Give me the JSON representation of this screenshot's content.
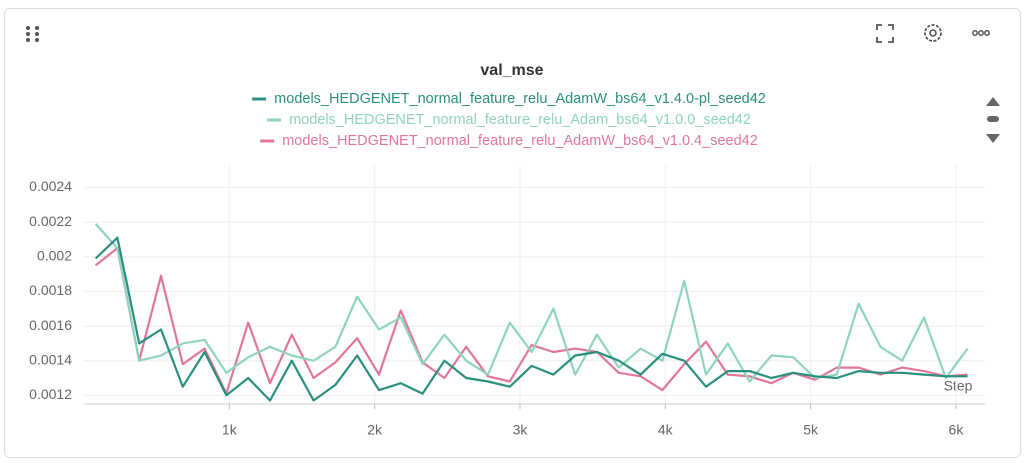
{
  "chart_data": {
    "type": "line",
    "title": "val_mse",
    "x_label": "Step",
    "x": [
      80,
      230,
      380,
      530,
      680,
      830,
      980,
      1130,
      1280,
      1430,
      1580,
      1730,
      1880,
      2030,
      2180,
      2330,
      2480,
      2630,
      2780,
      2930,
      3080,
      3230,
      3380,
      3530,
      3680,
      3830,
      3980,
      4130,
      4280,
      4430,
      4580,
      4730,
      4880,
      5030,
      5180,
      5330,
      5480,
      5630,
      5780,
      5930,
      6080
    ],
    "series": [
      {
        "name": "models_HEDGENET_normal_feature_relu_AdamW_bs64_v1.4.0-pl_seed42",
        "color": "#2a8f7e",
        "values": [
          0.00199,
          0.00211,
          0.0015,
          0.00158,
          0.00125,
          0.00145,
          0.0012,
          0.0013,
          0.00117,
          0.0014,
          0.00117,
          0.00126,
          0.00143,
          0.00123,
          0.00127,
          0.00121,
          0.0014,
          0.0013,
          0.00128,
          0.00125,
          0.00137,
          0.00132,
          0.00143,
          0.00145,
          0.0014,
          0.00132,
          0.00144,
          0.0014,
          0.00125,
          0.00134,
          0.00134,
          0.0013,
          0.00133,
          0.00131,
          0.0013,
          0.00134,
          0.00133,
          0.00133,
          0.00132,
          0.00131,
          0.00131
        ]
      },
      {
        "name": "models_HEDGENET_normal_feature_relu_Adam_bs64_v1.0.0_seed42",
        "color": "#8fd3c1",
        "values": [
          0.00219,
          0.00205,
          0.0014,
          0.00143,
          0.0015,
          0.00152,
          0.00133,
          0.00142,
          0.00148,
          0.00143,
          0.0014,
          0.00148,
          0.00177,
          0.00158,
          0.00165,
          0.00138,
          0.00155,
          0.0014,
          0.00132,
          0.00162,
          0.00145,
          0.0017,
          0.00132,
          0.00155,
          0.00136,
          0.00147,
          0.0014,
          0.00186,
          0.00132,
          0.0015,
          0.00128,
          0.00143,
          0.00142,
          0.0013,
          0.00132,
          0.00173,
          0.00148,
          0.0014,
          0.00165,
          0.0013,
          0.00147
        ]
      },
      {
        "name": "models_HEDGENET_normal_feature_relu_AdamW_bs64_v1.0.4_seed42",
        "color": "#e0779b",
        "values": [
          0.00195,
          0.00205,
          0.0014,
          0.00189,
          0.00138,
          0.00147,
          0.00121,
          0.00162,
          0.00127,
          0.00155,
          0.0013,
          0.00139,
          0.00153,
          0.00132,
          0.00169,
          0.00139,
          0.0013,
          0.00148,
          0.00131,
          0.00128,
          0.00149,
          0.00145,
          0.00147,
          0.00145,
          0.00133,
          0.00131,
          0.00123,
          0.00138,
          0.00151,
          0.00132,
          0.00131,
          0.00127,
          0.00133,
          0.00129,
          0.00136,
          0.00136,
          0.00132,
          0.00136,
          0.00134,
          0.00131,
          0.00132
        ]
      }
    ],
    "xlim": [
      0,
      6200
    ],
    "ylim": [
      0.00115,
      0.00253
    ],
    "xticks": [
      {
        "value": 1000,
        "label": "1k"
      },
      {
        "value": 2000,
        "label": "2k"
      },
      {
        "value": 3000,
        "label": "3k"
      },
      {
        "value": 4000,
        "label": "4k"
      },
      {
        "value": 5000,
        "label": "5k"
      },
      {
        "value": 6000,
        "label": "6k"
      }
    ],
    "yticks": [
      0.0012,
      0.0014,
      0.0016,
      0.0018,
      0.002,
      0.0022,
      0.0024
    ],
    "grid": true
  }
}
